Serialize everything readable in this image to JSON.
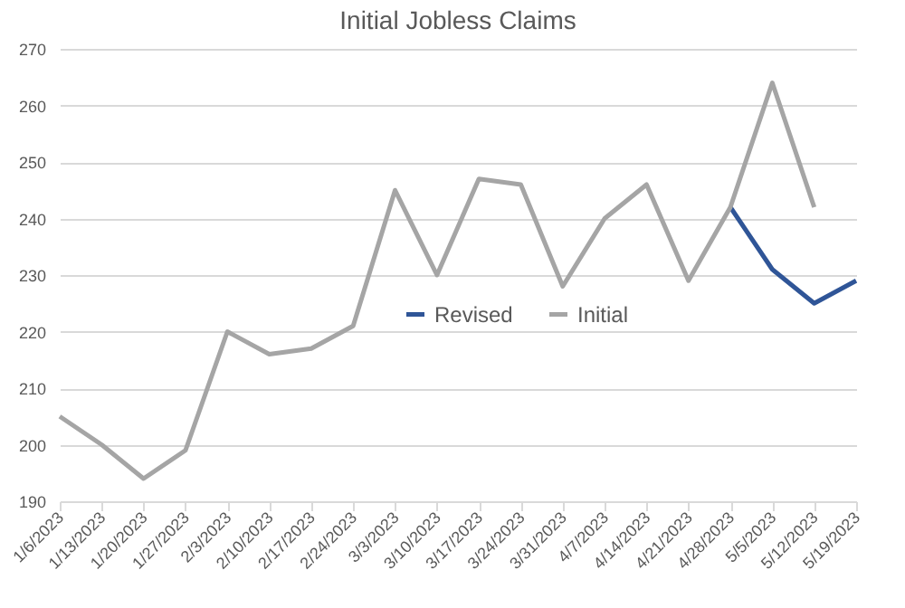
{
  "chart_data": {
    "type": "line",
    "title": "Initial Jobless Claims",
    "categories": [
      "1/6/2023",
      "1/13/2023",
      "1/20/2023",
      "1/27/2023",
      "2/3/2023",
      "2/10/2023",
      "2/17/2023",
      "2/24/2023",
      "3/3/2023",
      "3/10/2023",
      "3/17/2023",
      "3/24/2023",
      "3/31/2023",
      "4/7/2023",
      "4/14/2023",
      "4/21/2023",
      "4/28/2023",
      "5/5/2023",
      "5/12/2023",
      "5/19/2023"
    ],
    "series": [
      {
        "name": "Revised",
        "color": "#2f5597",
        "values": [
          null,
          null,
          null,
          null,
          null,
          null,
          null,
          null,
          null,
          null,
          null,
          null,
          null,
          null,
          null,
          null,
          242,
          231,
          225,
          229
        ]
      },
      {
        "name": "Initial",
        "color": "#a5a5a5",
        "values": [
          205,
          200,
          194,
          199,
          220,
          216,
          217,
          221,
          245,
          230,
          247,
          246,
          228,
          240,
          246,
          229,
          242,
          264,
          242,
          null
        ]
      }
    ],
    "ylim": [
      190,
      270
    ],
    "yticks": [
      190,
      200,
      210,
      220,
      230,
      240,
      250,
      260,
      270
    ],
    "grid": "y",
    "legend": "center",
    "marker": "none",
    "line_style": "solid"
  }
}
